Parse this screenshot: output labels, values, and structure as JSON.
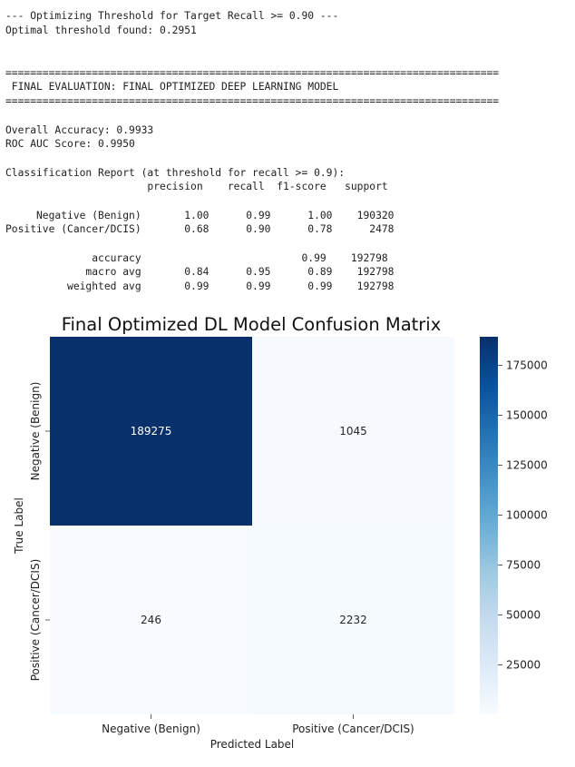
{
  "console_lines": [
    "--- Optimizing Threshold for Target Recall >= 0.90 ---",
    "Optimal threshold found: 0.2951",
    "",
    "",
    "================================================================================",
    " FINAL EVALUATION: FINAL OPTIMIZED DEEP LEARNING MODEL",
    "================================================================================",
    "",
    "Overall Accuracy: 0.9933",
    "ROC AUC Score: 0.9950",
    "",
    "Classification Report (at threshold for recall >= 0.9):",
    "                       precision    recall  f1-score   support",
    "",
    "     Negative (Benign)       1.00      0.99      1.00    190320",
    "Positive (Cancer/DCIS)       0.68      0.90      0.78      2478",
    "",
    "              accuracy                          0.99    192798",
    "             macro avg       0.84      0.95      0.89    192798",
    "          weighted avg       0.99      0.99      0.99    192798"
  ],
  "chart_data": {
    "type": "heatmap",
    "title": "Final Optimized DL Model Confusion Matrix",
    "xlabel": "Predicted Label",
    "ylabel": "True Label",
    "x_categories": [
      "Negative (Benign)",
      "Positive (Cancer/DCIS)"
    ],
    "y_categories": [
      "Negative (Benign)",
      "Positive (Cancer/DCIS)"
    ],
    "values": [
      [
        189275,
        1045
      ],
      [
        246,
        2232
      ]
    ],
    "colormap": "Blues",
    "colorbar_ticks": [
      25000,
      50000,
      75000,
      100000,
      125000,
      150000,
      175000
    ],
    "colorbar_tick_labels": [
      "25000",
      "50000",
      "75000",
      "100000",
      "125000",
      "150000",
      "175000"
    ],
    "vmin": 246,
    "vmax": 189275
  }
}
